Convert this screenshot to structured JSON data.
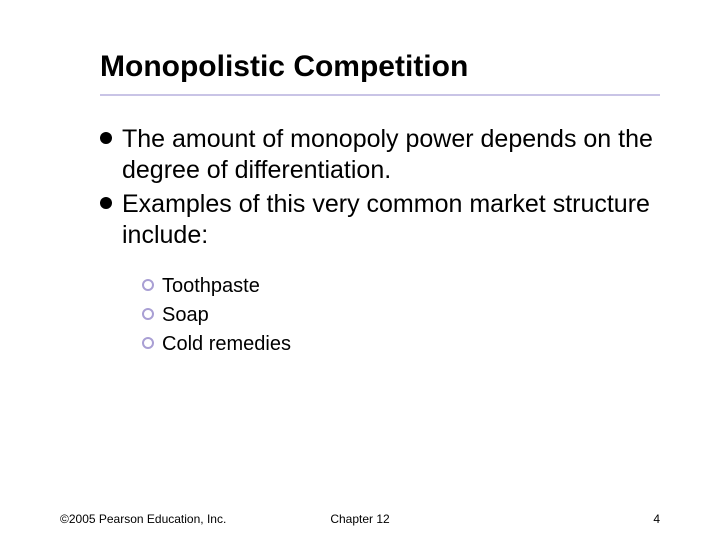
{
  "colors": {
    "rule": "#c9c4e6",
    "bullet_l1": "#000000",
    "ring_l2": "#a99fd4",
    "text": "#000000",
    "background": "#ffffff"
  },
  "type": "slide",
  "title": {
    "text": "Monopolistic Competition",
    "fontsize": 30
  },
  "body": {
    "fontsize_l1": 25,
    "fontsize_l2": 20,
    "bullet_l1_diameter": 12,
    "ring_l2_outer": 12,
    "ring_l2_border": 2,
    "items": [
      {
        "text": "The amount of monopoly power depends on the degree of differentiation."
      },
      {
        "text": "Examples of this very common market structure include:",
        "sub": [
          {
            "text": "Toothpaste"
          },
          {
            "text": "Soap"
          },
          {
            "text": "Cold remedies"
          }
        ]
      }
    ]
  },
  "footer": {
    "copyright": "©2005 Pearson Education, Inc.",
    "chapter": "Chapter 12",
    "page": "4",
    "fontsize": 12
  }
}
